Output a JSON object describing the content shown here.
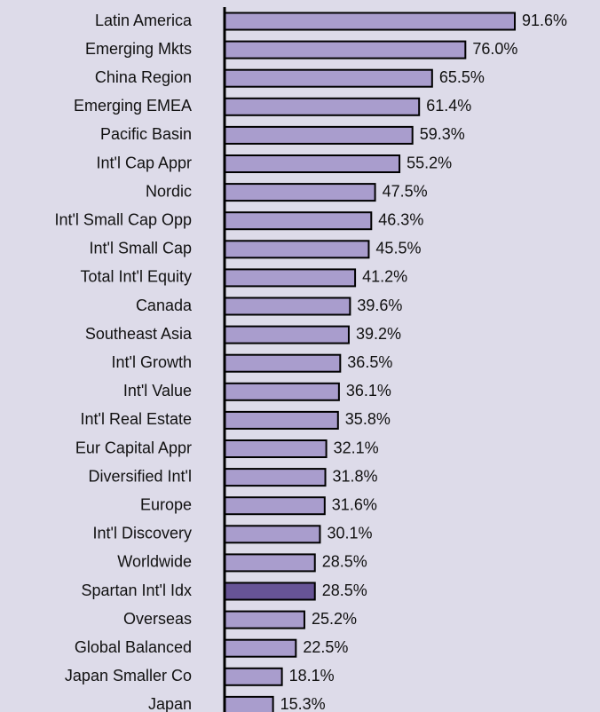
{
  "chart_data": {
    "type": "hbar",
    "categories": [
      "Latin America",
      "Emerging Mkts",
      "China Region",
      "Emerging EMEA",
      "Pacific Basin",
      "Int'l Cap Appr",
      "Nordic",
      "Int'l Small Cap Opp",
      "Int'l Small Cap",
      "Total Int'l Equity",
      "Canada",
      "Southeast Asia",
      "Int'l Growth",
      "Int'l Value",
      "Int'l Real Estate",
      "Eur Capital Appr",
      "Diversified Int'l",
      "Europe",
      "Int'l Discovery",
      "Worldwide",
      "Spartan Int'l Idx",
      "Overseas",
      "Global Balanced",
      "Japan Smaller Co",
      "Japan"
    ],
    "values": [
      91.6,
      76.0,
      65.5,
      61.4,
      59.3,
      55.2,
      47.5,
      46.3,
      45.5,
      41.2,
      39.6,
      39.2,
      36.5,
      36.1,
      35.8,
      32.1,
      31.8,
      31.6,
      30.1,
      28.5,
      28.5,
      25.2,
      22.5,
      18.1,
      15.3
    ],
    "value_labels": [
      "91.6%",
      "76.0%",
      "65.5%",
      "61.4%",
      "59.3%",
      "55.2%",
      "47.5%",
      "46.3%",
      "45.5%",
      "41.2%",
      "39.6%",
      "39.2%",
      "36.5%",
      "36.1%",
      "35.8%",
      "32.1%",
      "31.8%",
      "31.6%",
      "30.1%",
      "28.5%",
      "28.5%",
      "25.2%",
      "22.5%",
      "18.1%",
      "15.3%"
    ],
    "colors": [
      "#a99dcd",
      "#a99dcd",
      "#a99dcd",
      "#a99dcd",
      "#a99dcd",
      "#a99dcd",
      "#a99dcd",
      "#a99dcd",
      "#a99dcd",
      "#a99dcd",
      "#a99dcd",
      "#a99dcd",
      "#a99dcd",
      "#a99dcd",
      "#a99dcd",
      "#a99dcd",
      "#a99dcd",
      "#a99dcd",
      "#a99dcd",
      "#a99dcd",
      "#675496",
      "#a99dcd",
      "#a99dcd",
      "#a99dcd",
      "#a99dcd"
    ],
    "xlim": [
      0,
      100
    ]
  }
}
